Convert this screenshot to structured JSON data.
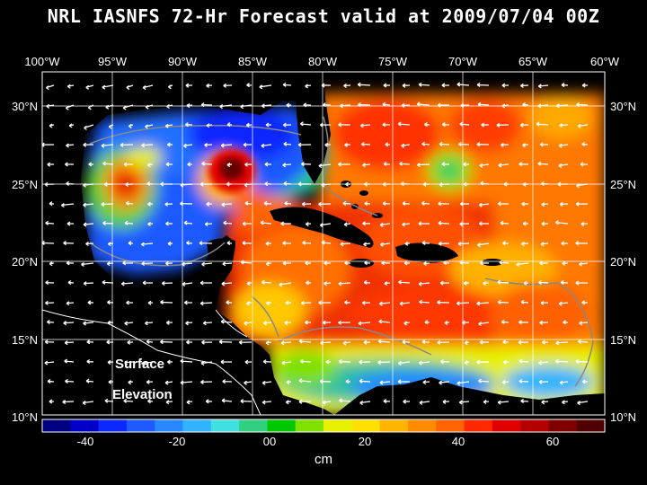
{
  "title": "NRL IASNFS  72-Hr Forecast valid at 2009/07/04 00Z",
  "lon_labels": [
    "100°W",
    "95°W",
    "90°W",
    "85°W",
    "80°W",
    "75°W",
    "70°W",
    "65°W",
    "60°W"
  ],
  "lat_labels": [
    "30°N",
    "25°N",
    "20°N",
    "15°N",
    "10°N"
  ],
  "overlay_label_1": "Surface",
  "overlay_label_2": "Elevation",
  "colorbar": {
    "unit": "cm",
    "tick_labels": [
      "-40",
      "-20",
      "00",
      "20",
      "40",
      "60"
    ],
    "colors": [
      "#000080",
      "#0000c8",
      "#0a28ff",
      "#1e5aff",
      "#2888ff",
      "#30b4ff",
      "#40e0e0",
      "#30d080",
      "#00c800",
      "#80e000",
      "#e6f000",
      "#ffe000",
      "#ffb400",
      "#ff8c00",
      "#ff6400",
      "#ff2800",
      "#e00000",
      "#b40000",
      "#800000",
      "#500000"
    ]
  }
}
